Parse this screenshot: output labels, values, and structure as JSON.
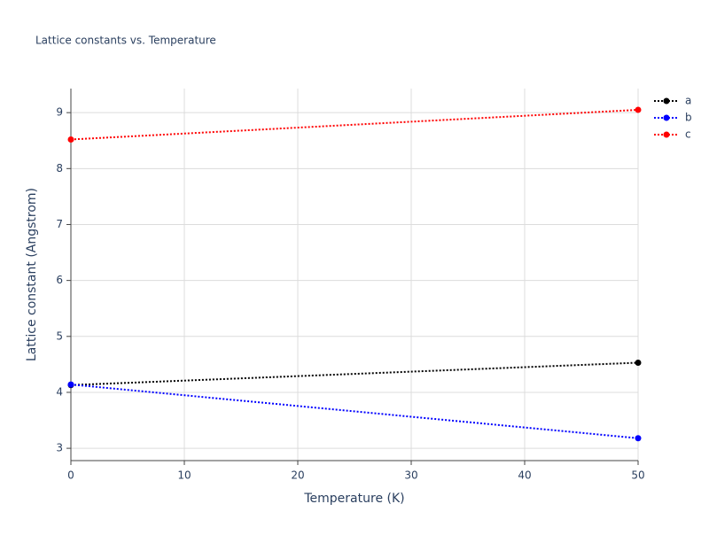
{
  "chart_data": {
    "type": "line",
    "title": "Lattice constants vs. Temperature",
    "x_label": "Temperature (K)",
    "y_label": "Lattice constant (Angstrom)",
    "x": [
      0,
      50
    ],
    "series": [
      {
        "name": "a",
        "color": "#000000",
        "values": [
          4.13,
          4.53
        ]
      },
      {
        "name": "b",
        "color": "#0000ff",
        "values": [
          4.14,
          3.18
        ]
      },
      {
        "name": "c",
        "color": "#ff0000",
        "values": [
          8.52,
          9.05
        ]
      }
    ],
    "xlim": [
      0,
      50
    ],
    "xticks": [
      0,
      10,
      20,
      30,
      40,
      50
    ],
    "ylim": [
      2.78,
      9.43
    ],
    "yticks": [
      3,
      4,
      5,
      6,
      7,
      8,
      9
    ],
    "grid": true,
    "legend": "right"
  }
}
